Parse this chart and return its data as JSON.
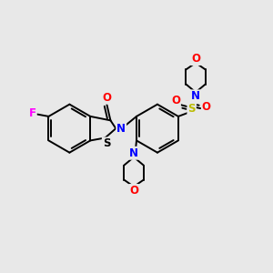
{
  "background_color": "#e8e8e8",
  "figure_size": [
    3.0,
    3.0
  ],
  "dpi": 100,
  "bond_color": "#000000",
  "bond_width": 1.4,
  "atom_colors": {
    "F": "#ff00ff",
    "O": "#ff0000",
    "N": "#0000ff",
    "S_yellow": "#bbbb00",
    "S_black": "#000000",
    "C": "#000000"
  },
  "font_size_atom": 8.5
}
